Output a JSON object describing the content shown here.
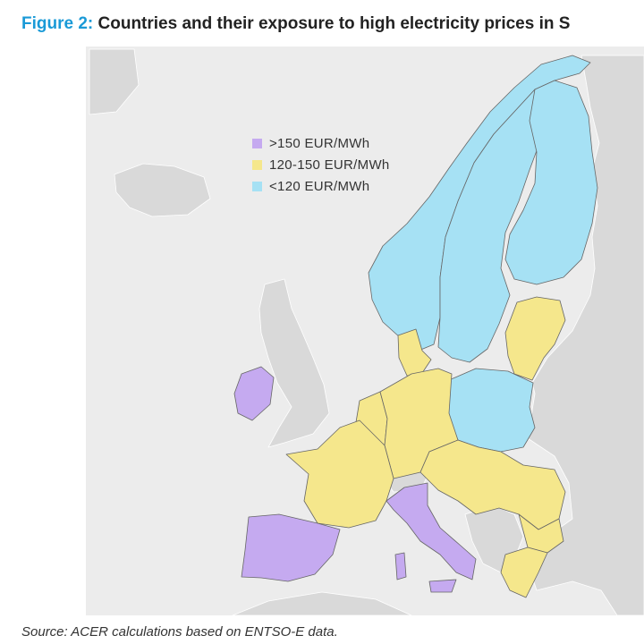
{
  "title": {
    "label": "Figure 2:",
    "text": "Countries and their exposure to high electricity prices in S"
  },
  "colors": {
    "high": "#c5aaf0",
    "mid": "#f5e78c",
    "low": "#a6e1f4",
    "other_land": "#d9d9d9",
    "sea": "#ececec",
    "border": "#666666",
    "title_label": "#1a9ad7"
  },
  "legend": [
    {
      "label": ">150 EUR/MWh",
      "color_key": "high"
    },
    {
      "label": "120-150 EUR/MWh",
      "color_key": "mid"
    },
    {
      "label": "<120 EUR/MWh",
      "color_key": "low"
    }
  ],
  "regions": {
    "high": [
      "Ireland",
      "Spain",
      "Portugal",
      "Italy"
    ],
    "mid": [
      "France",
      "Belgium",
      "Netherlands",
      "Luxembourg",
      "Germany",
      "Denmark",
      "Austria",
      "Czechia",
      "Slovakia",
      "Hungary",
      "Slovenia",
      "Croatia",
      "Romania",
      "Bulgaria",
      "Greece",
      "Estonia",
      "Latvia",
      "Lithuania"
    ],
    "low": [
      "Norway",
      "Sweden",
      "Finland",
      "Poland"
    ]
  },
  "source": "Source: ACER calculations based on ENTSO-E data."
}
